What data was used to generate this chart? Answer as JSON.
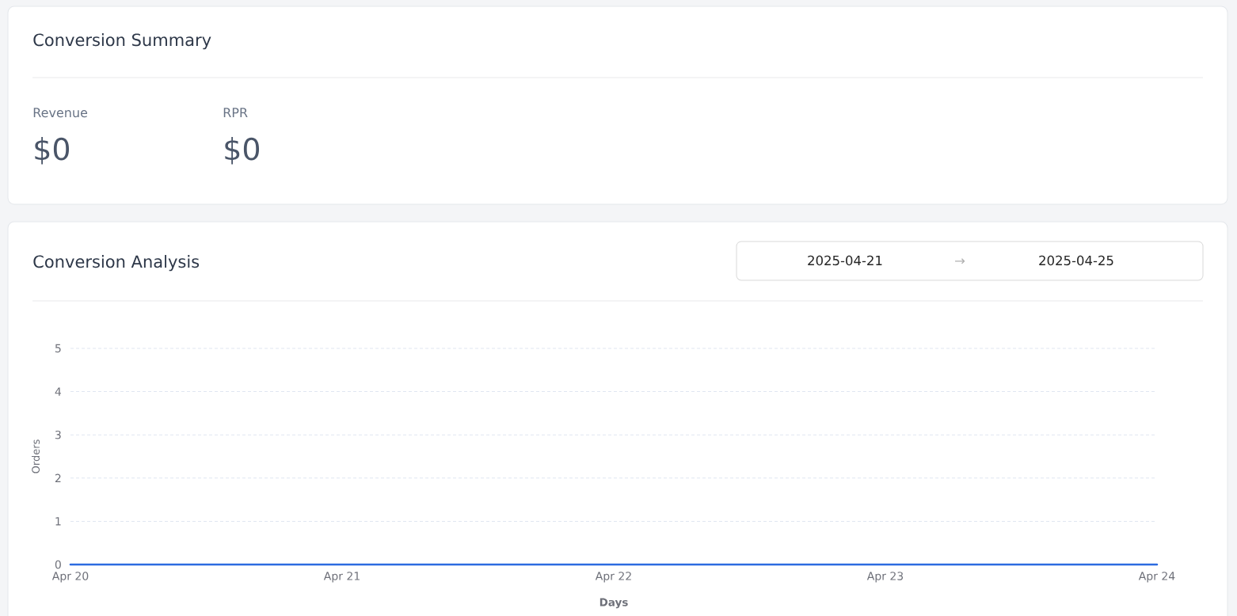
{
  "chart_data": [
    {
      "type": "other",
      "title": "Conversion Summary",
      "annotations": [
        "Revenue",
        "$0",
        "RPR",
        "$0"
      ]
    },
    {
      "type": "line",
      "title": "Conversion Analysis",
      "annotations": [
        "2025-04-21",
        "→",
        "2025-04-25"
      ],
      "xlabel": "Days",
      "ylabel": "Orders",
      "categories": [
        "Apr 20",
        "Apr 21",
        "Apr 22",
        "Apr 23",
        "Apr 24"
      ],
      "series": [
        {
          "color": "#2c6be0",
          "values": [
            0,
            0,
            0,
            0,
            0
          ]
        }
      ],
      "ylim": [
        0,
        5
      ],
      "yticks": [
        0,
        1,
        2,
        3,
        4,
        5
      ],
      "grid": "y",
      "marker": "none",
      "line_style": "solid"
    }
  ]
}
